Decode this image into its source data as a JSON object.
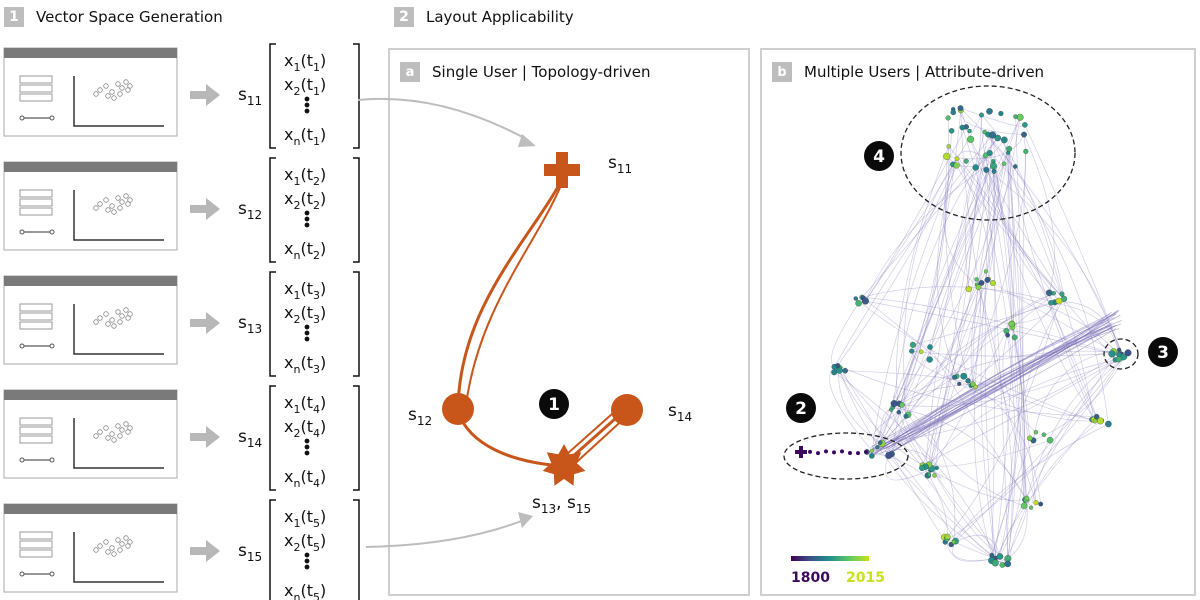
{
  "sections": [
    {
      "number": "1",
      "title": "Vector Space Generation"
    },
    {
      "number": "2",
      "title": "Layout Applicability"
    }
  ],
  "panel_a": {
    "badge": "a",
    "title": "Single User | Topology-driven"
  },
  "panel_b": {
    "badge": "b",
    "title": "Multiple Users | Attribute-driven"
  },
  "states": [
    {
      "sub": "11",
      "t": "1"
    },
    {
      "sub": "12",
      "t": "2"
    },
    {
      "sub": "13",
      "t": "3"
    },
    {
      "sub": "14",
      "t": "4"
    },
    {
      "sub": "15",
      "t": "5"
    }
  ],
  "node_labels": {
    "s11": "11",
    "s12": "12",
    "s14": "14",
    "s13_15": [
      "13",
      "15"
    ]
  },
  "markers": {
    "a1": "1",
    "b2": "2",
    "b3": "3",
    "b4": "4"
  },
  "colorbar": {
    "min": "1800",
    "max": "2015"
  },
  "colors": {
    "orange": "#C8561A",
    "dark_purple": "#3b0a5c",
    "viridis_yellow": "#c8e020",
    "edge": "#7a6fb8"
  }
}
